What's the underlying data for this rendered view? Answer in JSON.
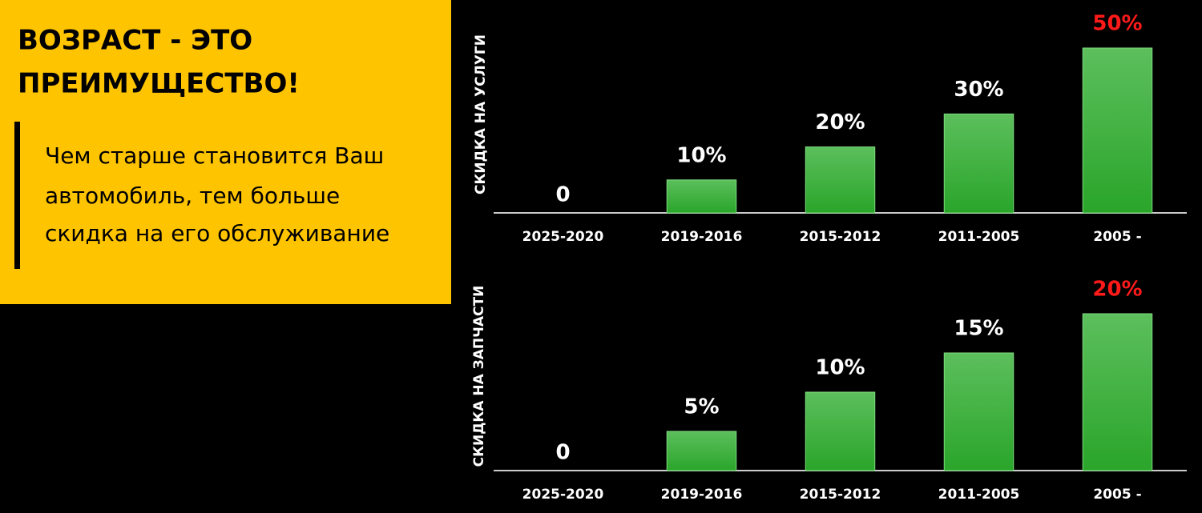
{
  "panel": {
    "title_lines": [
      "ВОЗРАСТ - ЭТО",
      "ПРЕИМУЩЕСТВО!"
    ],
    "text_lines": [
      "Чем старше становится Ваш",
      "автомобиль, тем больше",
      "скидка на его обслуживание"
    ]
  },
  "chart_data": [
    {
      "type": "bar",
      "y_label": "СКИДКА НА УСЛУГИ",
      "categories": [
        "2025-2020",
        "2019-2016",
        "2015-2012",
        "2011-2005",
        "2005 -"
      ],
      "values": [
        0,
        10,
        20,
        30,
        50
      ],
      "value_labels": [
        "0",
        "10%",
        "20%",
        "30%",
        "50%"
      ],
      "value_label_colors": [
        "#ffffff",
        "#ffffff",
        "#ffffff",
        "#ffffff",
        "#ff1a1a"
      ],
      "color": "#3cb043"
    },
    {
      "type": "bar",
      "y_label": "СКИДКА НА ЗАПЧАСТИ",
      "categories": [
        "2025-2020",
        "2019-2016",
        "2015-2012",
        "2011-2005",
        "2005 -"
      ],
      "values": [
        0,
        5,
        10,
        15,
        20
      ],
      "value_labels": [
        "0",
        "5%",
        "10%",
        "15%",
        "20%"
      ],
      "value_label_colors": [
        "#ffffff",
        "#ffffff",
        "#ffffff",
        "#ffffff",
        "#ff1a1a"
      ],
      "color": "#3cb043"
    }
  ]
}
